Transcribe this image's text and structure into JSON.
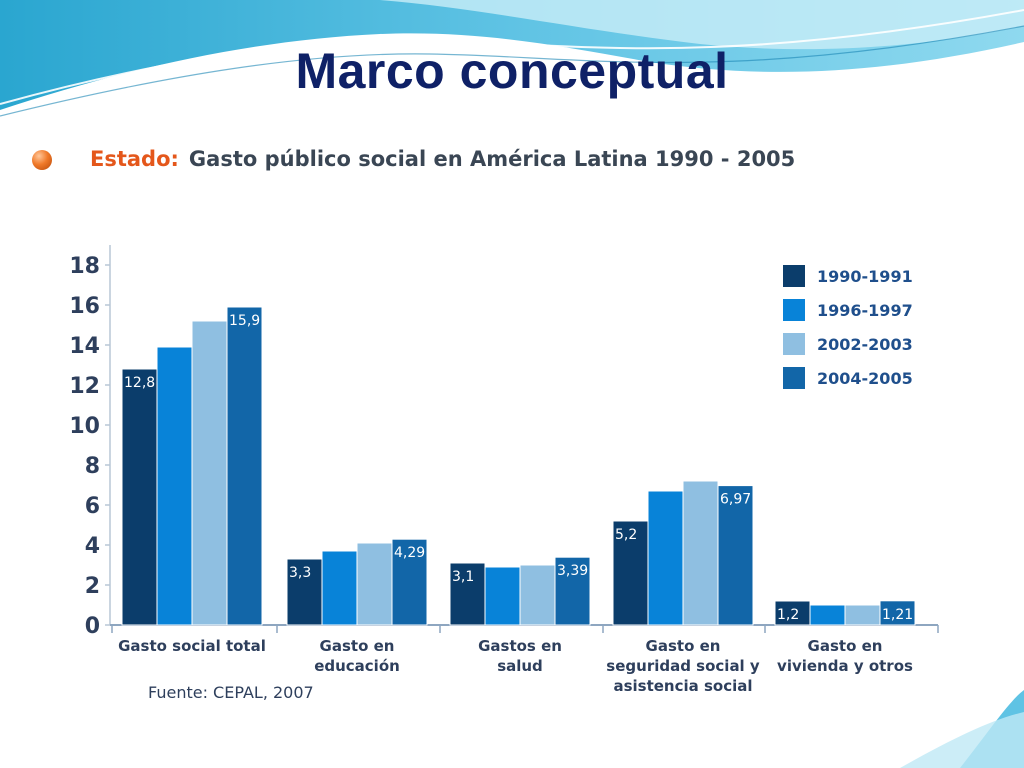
{
  "slide": {
    "title": "Marco conceptual",
    "heading_lead": "Estado:",
    "heading_rest": "Gasto público social en América Latina 1990 - 2005",
    "source": "Fuente: CEPAL, 2007"
  },
  "colors": {
    "title": "#0f2167",
    "heading_lead": "#e4571b",
    "series": [
      "#0b3d6b",
      "#0883d8",
      "#8fbfe1",
      "#1266a8"
    ]
  },
  "chart_data": {
    "type": "bar",
    "categories": [
      [
        "Gasto social total"
      ],
      [
        "Gasto en",
        "educación"
      ],
      [
        "Gastos en",
        "salud"
      ],
      [
        "Gasto en",
        "seguridad social y",
        "asistencia social"
      ],
      [
        "Gasto en",
        "vivienda y otros"
      ]
    ],
    "series": [
      {
        "name": "1990-1991",
        "values": [
          12.8,
          3.3,
          3.1,
          5.2,
          1.2
        ]
      },
      {
        "name": "1996-1997",
        "values": [
          13.9,
          3.7,
          2.9,
          6.7,
          1.0
        ]
      },
      {
        "name": "2002-2003",
        "values": [
          15.2,
          4.1,
          3.0,
          7.2,
          1.0
        ]
      },
      {
        "name": "2004-2005",
        "values": [
          15.9,
          4.29,
          3.39,
          6.97,
          1.21
        ]
      }
    ],
    "data_labels": [
      {
        "series": 0,
        "category": 0,
        "text": "12,8"
      },
      {
        "series": 3,
        "category": 0,
        "text": "15,9"
      },
      {
        "series": 0,
        "category": 1,
        "text": "3,3"
      },
      {
        "series": 3,
        "category": 1,
        "text": "4,29"
      },
      {
        "series": 0,
        "category": 2,
        "text": "3,1"
      },
      {
        "series": 3,
        "category": 2,
        "text": "3,39"
      },
      {
        "series": 0,
        "category": 3,
        "text": "5,2"
      },
      {
        "series": 3,
        "category": 3,
        "text": "6,97"
      },
      {
        "series": 0,
        "category": 4,
        "text": "1,2"
      },
      {
        "series": 3,
        "category": 4,
        "text": "1,21"
      }
    ],
    "yticks": [
      0,
      2,
      4,
      6,
      8,
      10,
      12,
      14,
      16,
      18
    ],
    "ylim": [
      0,
      18
    ],
    "grid": false,
    "legend_position": "top-right"
  }
}
